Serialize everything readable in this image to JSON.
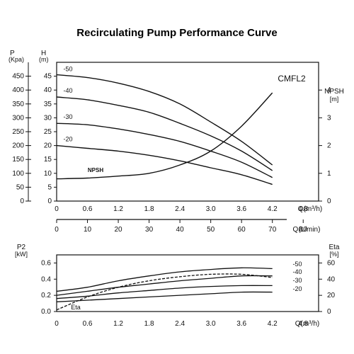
{
  "title": "Recirculating Pump Performance Curve",
  "chart_data": [
    {
      "id": "head-npsh",
      "type": "line",
      "title": "Recirculating Pump Performance Curve",
      "model_label": "CMFL2",
      "left_axis_1": {
        "unit": "P",
        "unit2": "(Kpa)",
        "ticks": [
          "450",
          "400",
          "350",
          "300",
          "250",
          "200",
          "150",
          "100",
          "50",
          "0"
        ]
      },
      "left_axis_2": {
        "unit": "H",
        "unit2": "(m)",
        "range": [
          0,
          50
        ],
        "ticks": [
          "45",
          "40",
          "35",
          "30",
          "25",
          "20",
          "15",
          "10",
          "5",
          "0"
        ]
      },
      "right_axis": {
        "label": "NPSH",
        "unit": "[m]",
        "range": [
          0,
          5
        ],
        "ticks": [
          "4",
          "3",
          "2",
          "1",
          "0"
        ]
      },
      "x_axis_1": {
        "label": "Q(m³/h)",
        "range": [
          0,
          5.1
        ],
        "ticks": [
          "0",
          "0.6",
          "1.2",
          "1.8",
          "2.4",
          "3.0",
          "3.6",
          "4.2",
          "4.8"
        ]
      },
      "x_axis_2": {
        "label": "Q(L/min)",
        "ticks": [
          "0",
          "10",
          "20",
          "30",
          "40",
          "50",
          "60",
          "70",
          "80"
        ]
      },
      "series": [
        {
          "name": "-50",
          "x": [
            0,
            0.6,
            1.2,
            1.8,
            2.4,
            3.0,
            3.6,
            4.2
          ],
          "y": [
            45.5,
            44.5,
            42.5,
            39.5,
            35,
            28.5,
            21.5,
            13
          ]
        },
        {
          "name": "-40",
          "x": [
            0,
            0.6,
            1.2,
            1.8,
            2.4,
            3.0,
            3.6,
            4.2
          ],
          "y": [
            37.5,
            36.5,
            34.5,
            32,
            28,
            23.5,
            18,
            11
          ]
        },
        {
          "name": "-30",
          "x": [
            0,
            0.6,
            1.2,
            1.8,
            2.4,
            3.0,
            3.6,
            4.2
          ],
          "y": [
            28,
            27.5,
            26,
            24,
            21.5,
            18,
            14,
            8.5
          ]
        },
        {
          "name": "-20",
          "x": [
            0,
            0.6,
            1.2,
            1.8,
            2.4,
            3.0,
            3.6,
            4.2
          ],
          "y": [
            20,
            19,
            18,
            16.5,
            14.5,
            12,
            9.5,
            6
          ]
        },
        {
          "name": "NPSH",
          "axis": "right",
          "x": [
            0,
            0.6,
            1.2,
            1.8,
            2.4,
            3.0,
            3.6,
            4.2
          ],
          "y": [
            0.8,
            0.83,
            0.9,
            1.0,
            1.3,
            1.8,
            2.7,
            3.9
          ]
        }
      ]
    },
    {
      "id": "power-eta",
      "type": "line",
      "left_axis": {
        "label": "P2",
        "unit": "[kW]",
        "range": [
          0,
          0.7
        ],
        "ticks": [
          "0.6",
          "0.4",
          "0.2",
          "0.0"
        ]
      },
      "right_axis": {
        "label": "Eta",
        "unit": "[%]",
        "range": [
          0,
          70
        ],
        "ticks": [
          "60",
          "40",
          "20",
          "0"
        ]
      },
      "x_axis": {
        "label": "Q(m³/h)",
        "range": [
          0,
          5.1
        ],
        "ticks": [
          "0",
          "0.6",
          "1.2",
          "1.8",
          "2.4",
          "3.0",
          "3.6",
          "4.2",
          "4.8"
        ]
      },
      "series": [
        {
          "name": "-50",
          "x": [
            0,
            0.6,
            1.2,
            1.8,
            2.4,
            3.0,
            3.6,
            4.2
          ],
          "y": [
            0.25,
            0.3,
            0.38,
            0.44,
            0.49,
            0.52,
            0.54,
            0.53
          ]
        },
        {
          "name": "-40",
          "x": [
            0,
            0.6,
            1.2,
            1.8,
            2.4,
            3.0,
            3.6,
            4.2
          ],
          "y": [
            0.2,
            0.25,
            0.3,
            0.34,
            0.38,
            0.41,
            0.44,
            0.44
          ]
        },
        {
          "name": "-30",
          "x": [
            0,
            0.6,
            1.2,
            1.8,
            2.4,
            3.0,
            3.6,
            4.2
          ],
          "y": [
            0.16,
            0.19,
            0.23,
            0.26,
            0.29,
            0.31,
            0.32,
            0.32
          ]
        },
        {
          "name": "-20",
          "x": [
            0,
            0.6,
            1.2,
            1.8,
            2.4,
            3.0,
            3.6,
            4.2
          ],
          "y": [
            0.12,
            0.14,
            0.16,
            0.18,
            0.2,
            0.22,
            0.24,
            0.24
          ]
        },
        {
          "name": "Eta",
          "axis": "right",
          "dashed": true,
          "x": [
            0,
            0.6,
            1.2,
            1.8,
            2.4,
            3.0,
            3.6,
            4.2
          ],
          "y": [
            2,
            18,
            30,
            38,
            43,
            46,
            46,
            42
          ]
        }
      ]
    }
  ]
}
